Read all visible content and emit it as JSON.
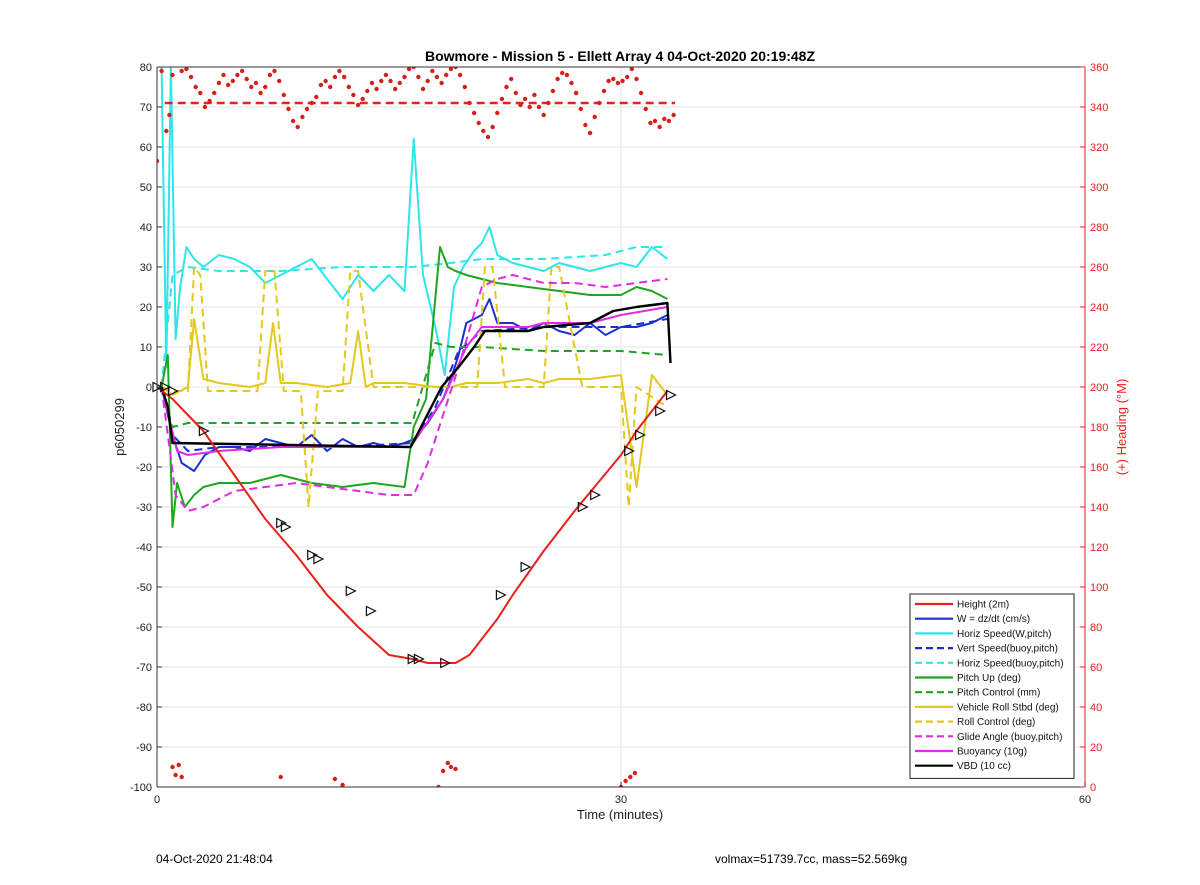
{
  "chart_data": {
    "type": "line",
    "title": "Bowmore - Mission 5 - Ellett Array 4 04-Oct-2020 20:19:48Z",
    "xlabel": "Time (minutes)",
    "ylabel_left": "p6050299",
    "ylabel_right": "(+) Heading (°M)",
    "xlim": [
      0,
      60
    ],
    "ylim_left": [
      -100,
      80
    ],
    "ylim_right": [
      0,
      360
    ],
    "x_ticks": [
      0,
      30,
      60
    ],
    "y_ticks_left": [
      80,
      70,
      60,
      50,
      40,
      30,
      20,
      10,
      0,
      -10,
      -20,
      -30,
      -40,
      -50,
      -60,
      -70,
      -80,
      -90,
      -100
    ],
    "y_ticks_right": [
      360,
      340,
      320,
      300,
      280,
      260,
      240,
      220,
      200,
      180,
      160,
      140,
      120,
      100,
      80,
      60,
      40,
      20,
      0
    ],
    "grid": true,
    "legend_position": "bottom-right",
    "legend": [
      {
        "label": "Height (2m)",
        "color": "#e8211a",
        "dash": "solid"
      },
      {
        "label": "W = dz/dt (cm/s)",
        "color": "#1b2fcf",
        "dash": "solid"
      },
      {
        "label": "Horiz Speed(W,pitch)",
        "color": "#2ee6ea",
        "dash": "solid"
      },
      {
        "label": "Vert Speed(buoy,pitch)",
        "color": "#1b2fcf",
        "dash": "dashed"
      },
      {
        "label": "Horiz Speed(buoy,pitch)",
        "color": "#2ee6ea",
        "dash": "dashed"
      },
      {
        "label": "Pitch Up (deg)",
        "color": "#1fa51f",
        "dash": "solid"
      },
      {
        "label": "Pitch Control (mm)",
        "color": "#1fa51f",
        "dash": "dashed"
      },
      {
        "label": "Vehicle Roll Stbd (deg)",
        "color": "#e3c91b",
        "dash": "solid"
      },
      {
        "label": "Roll Control (deg)",
        "color": "#e3c91b",
        "dash": "dashed"
      },
      {
        "label": "Glide Angle (buoy,pitch)",
        "color": "#e12be6",
        "dash": "dashed"
      },
      {
        "label": "Buoyancy (10g)",
        "color": "#e12be6",
        "dash": "solid"
      },
      {
        "label": "VBD (10 cc)",
        "color": "#000000",
        "dash": "solid"
      }
    ],
    "series": [
      {
        "name": "Height (2m)",
        "color": "#e8211a",
        "dash": "solid",
        "width": 2,
        "axis": "left",
        "x": [
          0,
          1,
          2,
          3,
          5,
          7,
          9,
          11,
          13,
          15,
          16.5,
          17.5,
          18.5,
          19.3,
          20.2,
          21,
          22,
          23,
          25,
          27,
          28.5,
          30,
          31,
          32,
          33
        ],
        "y": [
          0,
          -3,
          -7,
          -11,
          -22,
          -33,
          -42,
          -52,
          -60,
          -67,
          -68,
          -69,
          -69,
          -69,
          -67,
          -63,
          -58,
          -52,
          -41,
          -31,
          -24,
          -17,
          -11,
          -6,
          -1
        ]
      },
      {
        "name": "W = dz/dt (cm/s)",
        "color": "#1b2fcf",
        "dash": "solid",
        "width": 2,
        "axis": "left",
        "x": [
          0.3,
          1.0,
          1.6,
          2.4,
          3.1,
          4,
          5,
          6,
          7,
          8,
          9,
          10,
          11,
          12,
          13,
          14,
          15,
          16,
          16.6,
          17.5,
          18.5,
          19.0,
          19.5,
          20,
          21,
          21.5,
          22,
          23,
          24,
          25,
          26,
          27,
          28,
          29,
          30,
          31,
          32,
          33
        ],
        "y": [
          0,
          -12,
          -19,
          -21,
          -17,
          -15,
          -15,
          -16,
          -13,
          -14,
          -15,
          -12,
          -16,
          -13,
          -15,
          -14,
          -15,
          -14,
          -13,
          -9,
          -3,
          2,
          8,
          16,
          18,
          22,
          16,
          16,
          14,
          16,
          14,
          13,
          16,
          13,
          15,
          15,
          16,
          18
        ]
      },
      {
        "name": "Horiz Speed(W,pitch)",
        "color": "#2ee6ea",
        "dash": "solid",
        "width": 2,
        "axis": "left",
        "x": [
          0.3,
          0.6,
          0.9,
          1.2,
          1.5,
          1.9,
          2.4,
          3,
          4,
          5,
          6,
          7,
          8,
          9,
          10,
          11,
          12,
          13,
          14,
          15,
          16,
          16.6,
          17.2,
          18,
          18.6,
          19.2,
          19.8,
          20.5,
          21,
          21.5,
          22,
          23,
          24,
          25,
          26,
          27,
          28,
          29,
          30,
          31,
          32,
          33
        ],
        "y": [
          80,
          5,
          80,
          12,
          25,
          35,
          32,
          30,
          33,
          32,
          30,
          26,
          28,
          30,
          32,
          27,
          22,
          28,
          24,
          28,
          24,
          62,
          28,
          15,
          3,
          25,
          30,
          34,
          36,
          40,
          33,
          31,
          30,
          29,
          31,
          30,
          29,
          30,
          31,
          30,
          35,
          32
        ]
      },
      {
        "name": "Vert Speed(buoy,pitch)",
        "color": "#1b2fcf",
        "dash": "dashed",
        "width": 2,
        "axis": "left",
        "x": [
          0.3,
          1.0,
          2,
          4,
          8,
          12,
          16.5,
          18,
          19.5,
          21,
          25,
          30,
          33
        ],
        "y": [
          0,
          -12,
          -16,
          -15,
          -15,
          -15,
          -14,
          -5,
          9,
          14,
          15,
          15,
          17
        ]
      },
      {
        "name": "Horiz Speed(buoy,pitch)",
        "color": "#2ee6ea",
        "dash": "dashed",
        "width": 2,
        "axis": "left",
        "x": [
          0.3,
          1,
          2,
          4,
          8,
          12,
          16.5,
          19,
          21,
          25,
          29,
          31,
          33
        ],
        "y": [
          0,
          28,
          30,
          29,
          29,
          30,
          30,
          31,
          32,
          32,
          33,
          35,
          35
        ]
      },
      {
        "name": "Pitch Up (deg)",
        "color": "#1fa51f",
        "dash": "solid",
        "width": 2,
        "axis": "left",
        "x": [
          0.3,
          0.7,
          1.0,
          1.3,
          1.8,
          2.4,
          3,
          4,
          6,
          8,
          10,
          12,
          14,
          16,
          16.6,
          17.4,
          18.3,
          18.8,
          19.3,
          20,
          22,
          24,
          26,
          28,
          30,
          31,
          32,
          33
        ],
        "y": [
          0,
          8,
          -35,
          -24,
          -30,
          -27,
          -25,
          -24,
          -24,
          -22,
          -24,
          -25,
          -24,
          -25,
          -10,
          -3,
          35,
          30,
          29,
          28,
          26,
          25,
          24,
          23,
          23,
          25,
          24,
          22
        ]
      },
      {
        "name": "Pitch Control (mm)",
        "color": "#1fa51f",
        "dash": "dashed",
        "width": 2,
        "axis": "left",
        "x": [
          0.3,
          1,
          2,
          6,
          10,
          14,
          16.5,
          18,
          19,
          21,
          25,
          30,
          33
        ],
        "y": [
          0,
          -10,
          -9,
          -9,
          -9,
          -9,
          -9,
          11,
          10,
          10,
          9,
          9,
          8
        ]
      },
      {
        "name": "Vehicle Roll Stbd (deg)",
        "color": "#e3c91b",
        "dash": "solid",
        "width": 2,
        "axis": "left",
        "x": [
          0.3,
          1,
          2,
          2.4,
          3,
          4,
          6,
          7,
          7.5,
          8,
          9,
          11,
          12.5,
          13,
          13.5,
          14,
          16,
          18,
          19,
          20,
          22,
          24,
          25,
          26,
          28,
          30,
          31,
          32,
          33
        ],
        "y": [
          0,
          -2,
          0,
          17,
          2,
          1,
          0,
          1,
          16,
          1,
          1,
          0,
          1,
          14,
          0,
          1,
          1,
          0,
          0,
          1,
          1,
          2,
          1,
          2,
          2,
          3,
          -25,
          3,
          -2
        ]
      },
      {
        "name": "Roll Control (deg)",
        "color": "#e3c91b",
        "dash": "dashed",
        "width": 2,
        "axis": "left",
        "x": [
          0.3,
          1,
          2,
          2.4,
          2.8,
          3.3,
          6.5,
          7,
          7.6,
          8.2,
          9.3,
          9.8,
          10.4,
          12,
          12.5,
          13,
          14,
          16,
          17.2,
          19,
          20.7,
          21.2,
          21.7,
          22.5,
          24,
          25,
          25.5,
          26,
          27.5,
          30,
          30.5,
          31,
          33
        ],
        "y": [
          0,
          -1,
          -1,
          30,
          28,
          -1,
          -1,
          29,
          29,
          -1,
          -1,
          -30,
          -1,
          -1,
          29,
          29,
          0,
          0,
          0,
          0,
          0,
          30,
          30,
          0,
          0,
          0,
          30,
          30,
          0,
          0,
          -30,
          0,
          -5
        ]
      },
      {
        "name": "Glide Angle (buoy,pitch)",
        "color": "#e12be6",
        "dash": "dashed",
        "width": 2,
        "axis": "left",
        "x": [
          0.3,
          1.2,
          2,
          3,
          5,
          7,
          9,
          11,
          13,
          15,
          16.6,
          17.5,
          18.5,
          19.5,
          21,
          22,
          23,
          25,
          27,
          29,
          31,
          33
        ],
        "y": [
          0,
          -27,
          -31,
          -30,
          -26,
          -25,
          -24,
          -25,
          -26,
          -27,
          -27,
          -19,
          -7,
          5,
          25,
          27,
          28,
          26,
          26,
          25,
          26,
          27
        ]
      },
      {
        "name": "Buoyancy (10g)",
        "color": "#e12be6",
        "dash": "solid",
        "width": 2,
        "axis": "left",
        "x": [
          0.3,
          1.3,
          2,
          4,
          8,
          12,
          16.4,
          18.5,
          20,
          21,
          24,
          25,
          28,
          30,
          33
        ],
        "y": [
          0,
          -16,
          -17,
          -16,
          -15,
          -15,
          -15,
          -3,
          10,
          15,
          15,
          16,
          16,
          18,
          20
        ]
      },
      {
        "name": "VBD (10 cc)",
        "color": "#000000",
        "dash": "solid",
        "width": 2.4,
        "axis": "left",
        "x": [
          0.3,
          0.7,
          1.0,
          16.4,
          18.4,
          19.5,
          20.5,
          21.2,
          24,
          25,
          28,
          29.5,
          31,
          33,
          33.2
        ],
        "y": [
          0,
          -5,
          -14,
          -15,
          0,
          5,
          10,
          14,
          14,
          15,
          16,
          19,
          20,
          21,
          6
        ]
      },
      {
        "name": "Target Heading",
        "color": "#e8211a",
        "dash": "dashed",
        "width": 2.4,
        "axis": "right",
        "x": [
          0.5,
          33.5
        ],
        "y": [
          342,
          342
        ]
      }
    ],
    "heading_points": [
      [
        0,
        313
      ],
      [
        0.3,
        358
      ],
      [
        0.6,
        328
      ],
      [
        0.8,
        336
      ],
      [
        1.0,
        356
      ],
      [
        1.3,
        361
      ],
      [
        1.6,
        358
      ],
      [
        1.9,
        359
      ],
      [
        2.2,
        355
      ],
      [
        2.5,
        350
      ],
      [
        2.8,
        347
      ],
      [
        3.1,
        340
      ],
      [
        3.4,
        343
      ],
      [
        3.7,
        347
      ],
      [
        4.0,
        352
      ],
      [
        4.3,
        356
      ],
      [
        4.6,
        351
      ],
      [
        4.9,
        353
      ],
      [
        5.2,
        356
      ],
      [
        5.5,
        358
      ],
      [
        5.8,
        354
      ],
      [
        6.1,
        350
      ],
      [
        6.4,
        352
      ],
      [
        6.7,
        347
      ],
      [
        7.0,
        350
      ],
      [
        7.3,
        356
      ],
      [
        7.6,
        358
      ],
      [
        7.9,
        353
      ],
      [
        8.2,
        346
      ],
      [
        8.5,
        339
      ],
      [
        8.8,
        333
      ],
      [
        9.1,
        330
      ],
      [
        9.4,
        335
      ],
      [
        9.7,
        339
      ],
      [
        10.0,
        342
      ],
      [
        10.3,
        345
      ],
      [
        10.6,
        351
      ],
      [
        10.9,
        353
      ],
      [
        11.2,
        350
      ],
      [
        11.5,
        355
      ],
      [
        11.8,
        358
      ],
      [
        12.1,
        355
      ],
      [
        12.4,
        350
      ],
      [
        12.7,
        346
      ],
      [
        13.0,
        341
      ],
      [
        13.3,
        344
      ],
      [
        13.6,
        348
      ],
      [
        13.9,
        352
      ],
      [
        14.2,
        349
      ],
      [
        14.5,
        353
      ],
      [
        14.8,
        356
      ],
      [
        15.1,
        353
      ],
      [
        15.4,
        349
      ],
      [
        15.7,
        352
      ],
      [
        16.0,
        355
      ],
      [
        16.3,
        359
      ],
      [
        16.6,
        360
      ],
      [
        16.9,
        355
      ],
      [
        17.2,
        349
      ],
      [
        17.5,
        353
      ],
      [
        17.8,
        358
      ],
      [
        18.1,
        355
      ],
      [
        18.4,
        352
      ],
      [
        18.7,
        356
      ],
      [
        19.0,
        359
      ],
      [
        19.3,
        360
      ],
      [
        19.6,
        356
      ],
      [
        19.9,
        350
      ],
      [
        20.2,
        342
      ],
      [
        20.5,
        337
      ],
      [
        20.8,
        332
      ],
      [
        21.1,
        328
      ],
      [
        21.4,
        325
      ],
      [
        21.7,
        330
      ],
      [
        22.0,
        337
      ],
      [
        22.3,
        344
      ],
      [
        22.6,
        350
      ],
      [
        22.9,
        354
      ],
      [
        23.2,
        347
      ],
      [
        23.5,
        341
      ],
      [
        23.8,
        344
      ],
      [
        24.1,
        340
      ],
      [
        24.4,
        346
      ],
      [
        24.7,
        340
      ],
      [
        25.0,
        336
      ],
      [
        25.3,
        342
      ],
      [
        25.6,
        348
      ],
      [
        25.9,
        354
      ],
      [
        26.2,
        357
      ],
      [
        26.5,
        356
      ],
      [
        26.8,
        352
      ],
      [
        27.1,
        347
      ],
      [
        27.4,
        339
      ],
      [
        27.7,
        331
      ],
      [
        28.0,
        327
      ],
      [
        28.3,
        335
      ],
      [
        28.6,
        342
      ],
      [
        28.9,
        348
      ],
      [
        29.2,
        353
      ],
      [
        29.5,
        354
      ],
      [
        29.8,
        352
      ],
      [
        30.1,
        353
      ],
      [
        30.4,
        355
      ],
      [
        30.7,
        359
      ],
      [
        31.0,
        354
      ],
      [
        31.3,
        347
      ],
      [
        31.6,
        339
      ],
      [
        31.9,
        332
      ],
      [
        32.2,
        333
      ],
      [
        32.5,
        330
      ],
      [
        32.8,
        334
      ],
      [
        33.1,
        333
      ],
      [
        33.4,
        336
      ],
      [
        1.0,
        10
      ],
      [
        1.2,
        6
      ],
      [
        1.4,
        11
      ],
      [
        1.6,
        5
      ],
      [
        8.0,
        5
      ],
      [
        11.5,
        4
      ],
      [
        12.0,
        1
      ],
      [
        18.2,
        0
      ],
      [
        18.5,
        8
      ],
      [
        18.8,
        12
      ],
      [
        19.0,
        10
      ],
      [
        19.3,
        9
      ],
      [
        30.0,
        0
      ],
      [
        30.3,
        3
      ],
      [
        30.6,
        5
      ],
      [
        30.9,
        7
      ]
    ],
    "height_markers": [
      [
        0,
        0
      ],
      [
        0.5,
        0
      ],
      [
        1,
        -1
      ],
      [
        3,
        -11
      ],
      [
        8,
        -34
      ],
      [
        8.3,
        -35
      ],
      [
        10,
        -42
      ],
      [
        10.4,
        -43
      ],
      [
        12.5,
        -51
      ],
      [
        13.8,
        -56
      ],
      [
        16.5,
        -68
      ],
      [
        16.9,
        -68
      ],
      [
        18.6,
        -69
      ],
      [
        22.2,
        -52
      ],
      [
        23.8,
        -45
      ],
      [
        27.5,
        -30
      ],
      [
        28.3,
        -27
      ],
      [
        30.5,
        -16
      ],
      [
        31.2,
        -12
      ],
      [
        32.5,
        -6
      ],
      [
        33.2,
        -2
      ]
    ]
  },
  "footer": {
    "timestamp": "04-Oct-2020 21:48:04",
    "summary": "volmax=51739.7cc, mass=52.569kg"
  }
}
